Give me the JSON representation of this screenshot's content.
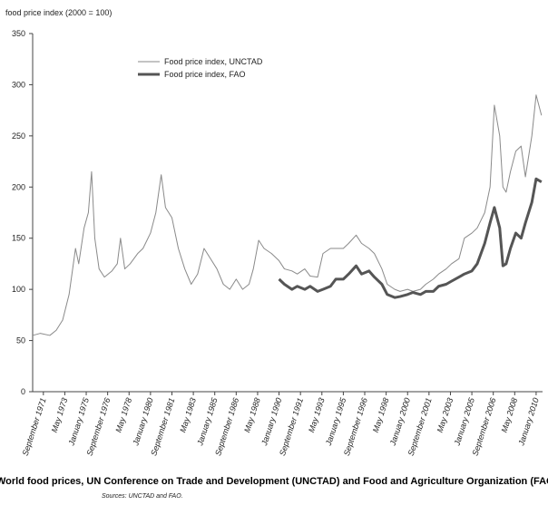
{
  "chart_data": {
    "type": "line",
    "ylabel": "food price index (2000 = 100)",
    "caption": "World food prices, UN Conference on Trade and Development (UNCTAD) and Food and Agriculture Organization (FAO),",
    "source": "Sources: UNCTAD and FAO.",
    "ylim": [
      0,
      350
    ],
    "yticks": [
      0,
      50,
      100,
      150,
      200,
      250,
      300,
      350
    ],
    "xlim": [
      "1970-11",
      "2010-07"
    ],
    "xticks": [
      {
        "value": "1971-09",
        "label": "September 1971"
      },
      {
        "value": "1973-05",
        "label": "May 1973"
      },
      {
        "value": "1975-01",
        "label": "January 1975"
      },
      {
        "value": "1976-09",
        "label": "September 1976"
      },
      {
        "value": "1978-05",
        "label": "May 1978"
      },
      {
        "value": "1980-01",
        "label": "January 1980"
      },
      {
        "value": "1981-09",
        "label": "September 1981"
      },
      {
        "value": "1983-05",
        "label": "May 1983"
      },
      {
        "value": "1985-01",
        "label": "January 1985"
      },
      {
        "value": "1986-09",
        "label": "September 1986"
      },
      {
        "value": "1988-05",
        "label": "May 1988"
      },
      {
        "value": "1990-01",
        "label": "January 1990"
      },
      {
        "value": "1991-09",
        "label": "September 1991"
      },
      {
        "value": "1993-05",
        "label": "May 1993"
      },
      {
        "value": "1995-01",
        "label": "January 1995"
      },
      {
        "value": "1996-09",
        "label": "September 1996"
      },
      {
        "value": "1998-05",
        "label": "May 1998"
      },
      {
        "value": "2000-01",
        "label": "January 2000"
      },
      {
        "value": "2001-09",
        "label": "September 2001"
      },
      {
        "value": "2003-05",
        "label": "May 2003"
      },
      {
        "value": "2005-01",
        "label": "January 2005"
      },
      {
        "value": "2006-09",
        "label": "September 2006"
      },
      {
        "value": "2008-05",
        "label": "May 2008"
      },
      {
        "value": "2010-01",
        "label": "January 2010"
      }
    ],
    "series": [
      {
        "name": "Food price index, UNCTAD",
        "color": "#8a8a8a",
        "width": 1,
        "x": [
          "1970-11",
          "1971-06",
          "1972-03",
          "1972-09",
          "1973-03",
          "1973-09",
          "1974-03",
          "1974-06",
          "1974-11",
          "1975-03",
          "1975-06",
          "1975-09",
          "1976-01",
          "1976-06",
          "1977-01",
          "1977-06",
          "1977-09",
          "1978-01",
          "1978-06",
          "1979-01",
          "1979-06",
          "1980-01",
          "1980-06",
          "1980-11",
          "1981-03",
          "1981-09",
          "1982-03",
          "1982-09",
          "1983-03",
          "1983-09",
          "1984-03",
          "1984-09",
          "1985-03",
          "1985-09",
          "1986-03",
          "1986-09",
          "1987-03",
          "1987-09",
          "1988-01",
          "1988-06",
          "1988-11",
          "1989-06",
          "1990-01",
          "1990-06",
          "1991-01",
          "1991-06",
          "1992-01",
          "1992-06",
          "1993-01",
          "1993-06",
          "1994-01",
          "1994-06",
          "1995-01",
          "1995-06",
          "1996-01",
          "1996-06",
          "1997-01",
          "1997-06",
          "1998-01",
          "1998-06",
          "1999-01",
          "1999-06",
          "2000-01",
          "2000-06",
          "2001-01",
          "2001-06",
          "2002-01",
          "2002-06",
          "2003-01",
          "2003-06",
          "2004-01",
          "2004-06",
          "2005-01",
          "2005-06",
          "2006-01",
          "2006-06",
          "2006-10",
          "2007-03",
          "2007-06",
          "2007-09",
          "2008-01",
          "2008-06",
          "2008-11",
          "2009-03",
          "2009-09",
          "2010-01",
          "2010-06"
        ],
        "values": [
          55,
          57,
          55,
          60,
          70,
          95,
          140,
          125,
          160,
          175,
          215,
          150,
          120,
          112,
          118,
          125,
          150,
          120,
          125,
          135,
          140,
          155,
          175,
          212,
          180,
          170,
          140,
          120,
          105,
          115,
          140,
          130,
          120,
          105,
          100,
          110,
          100,
          105,
          120,
          148,
          140,
          135,
          128,
          120,
          118,
          115,
          120,
          113,
          112,
          135,
          140,
          140,
          140,
          145,
          153,
          145,
          140,
          135,
          120,
          105,
          100,
          98,
          100,
          98,
          100,
          105,
          110,
          115,
          120,
          125,
          130,
          150,
          155,
          160,
          175,
          200,
          280,
          250,
          200,
          195,
          215,
          235,
          240,
          210,
          250,
          290,
          270
        ]
      },
      {
        "name": "Food price index, FAO",
        "color": "#555555",
        "width": 3,
        "x": [
          "1990-01",
          "1990-06",
          "1991-01",
          "1991-06",
          "1992-01",
          "1992-06",
          "1993-01",
          "1993-06",
          "1994-01",
          "1994-06",
          "1995-01",
          "1995-06",
          "1996-01",
          "1996-06",
          "1997-01",
          "1997-06",
          "1998-01",
          "1998-06",
          "1999-01",
          "1999-06",
          "2000-01",
          "2000-06",
          "2001-01",
          "2001-06",
          "2002-01",
          "2002-06",
          "2003-01",
          "2003-06",
          "2004-01",
          "2004-06",
          "2005-01",
          "2005-06",
          "2006-01",
          "2006-06",
          "2006-10",
          "2007-03",
          "2007-06",
          "2007-09",
          "2008-01",
          "2008-06",
          "2008-11",
          "2009-03",
          "2009-09",
          "2010-01",
          "2010-06"
        ],
        "values": [
          110,
          105,
          100,
          103,
          100,
          103,
          98,
          100,
          103,
          110,
          110,
          115,
          123,
          115,
          118,
          112,
          105,
          95,
          92,
          93,
          95,
          97,
          95,
          98,
          98,
          103,
          105,
          108,
          112,
          115,
          118,
          125,
          145,
          165,
          180,
          160,
          123,
          125,
          140,
          155,
          150,
          165,
          185,
          208,
          205
        ]
      }
    ]
  }
}
